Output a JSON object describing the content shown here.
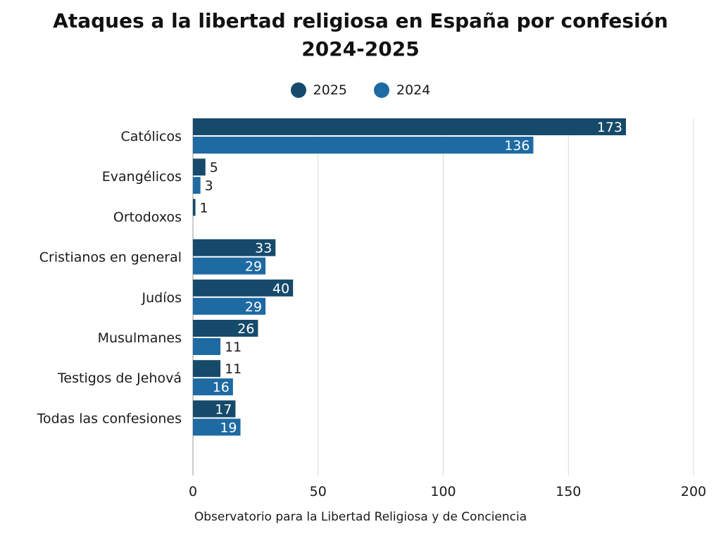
{
  "chart_data": {
    "type": "bar",
    "orientation": "horizontal",
    "title": "Ataques a la libertad religiosa en España por confesión",
    "subtitle": "2024-2025",
    "categories": [
      "Católicos",
      "Evangélicos",
      "Ortodoxos",
      "Cristianos en general",
      "Judíos",
      "Musulmanes",
      "Testigos de Jehová",
      "Todas las confesiones"
    ],
    "series": [
      {
        "name": "2025",
        "color": "#164a6b",
        "values": [
          173,
          5,
          1,
          33,
          40,
          26,
          11,
          17
        ]
      },
      {
        "name": "2024",
        "color": "#1e6aa3",
        "values": [
          136,
          3,
          null,
          29,
          29,
          11,
          16,
          19
        ]
      }
    ],
    "xlim": [
      0,
      200
    ],
    "xticks": [
      0,
      50,
      100,
      150,
      200
    ],
    "grid": true,
    "legend_position": "top-center",
    "source": "Observatorio para la Libertad Religiosa y de Conciencia"
  }
}
